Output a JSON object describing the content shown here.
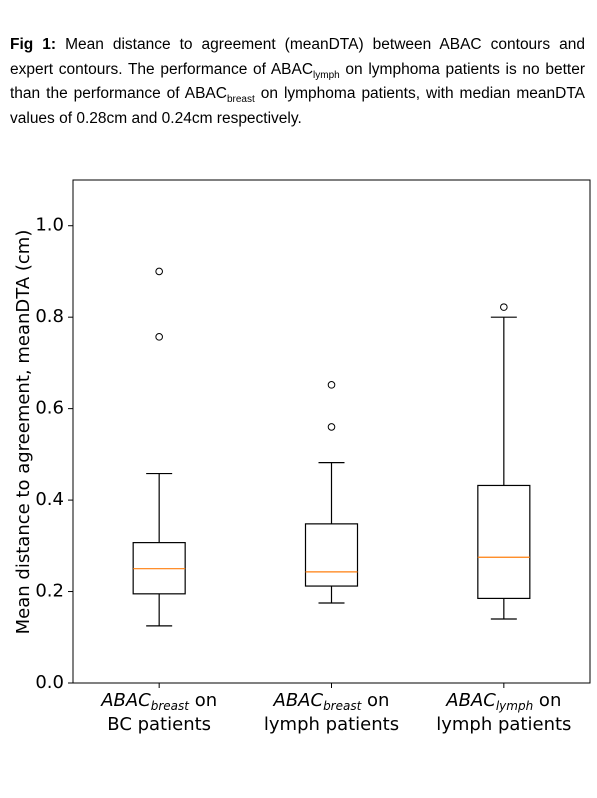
{
  "caption": {
    "label": "Fig 1:",
    "runs": [
      {
        "text": " Mean distance to agreement (meanDTA) between ABAC contours and expert contours. The performance of ABAC"
      },
      {
        "text": "lymph",
        "sub": true
      },
      {
        "text": " on lymphoma patients is no better than the performance of ABAC"
      },
      {
        "text": "breast",
        "sub": true
      },
      {
        "text": " on lymphoma patients, with median meanDTA values of 0.28cm and 0.24cm respectively."
      }
    ]
  },
  "chart_data": {
    "type": "box",
    "ylabel": "Mean distance to agreement, meanDTA (cm)",
    "categories": [
      {
        "name": "ABAC",
        "sub": "breast",
        "suffix": " on",
        "line2": "BC patients"
      },
      {
        "name": "ABAC",
        "sub": "breast",
        "suffix": " on",
        "line2": "lymph patients"
      },
      {
        "name": "ABAC",
        "sub": "lymph",
        "suffix": " on",
        "line2": "lymph patients"
      }
    ],
    "boxes": [
      {
        "whislo": 0.125,
        "q1": 0.195,
        "med": 0.25,
        "q3": 0.307,
        "whishi": 0.458,
        "fliers": [
          0.757,
          0.9
        ]
      },
      {
        "whislo": 0.175,
        "q1": 0.212,
        "med": 0.243,
        "q3": 0.348,
        "whishi": 0.482,
        "fliers": [
          0.56,
          0.652
        ]
      },
      {
        "whislo": 0.14,
        "q1": 0.185,
        "med": 0.275,
        "q3": 0.432,
        "whishi": 0.8,
        "fliers": [
          0.822
        ]
      }
    ],
    "box_color": "#000000",
    "median_color": "#ff7f0e",
    "ylim": [
      0,
      1.1
    ],
    "yticks": [
      {
        "value": 0,
        "label": "0.0"
      },
      0.2,
      0.4,
      0.6,
      0.8,
      {
        "value": 1,
        "label": "1.0"
      }
    ]
  }
}
